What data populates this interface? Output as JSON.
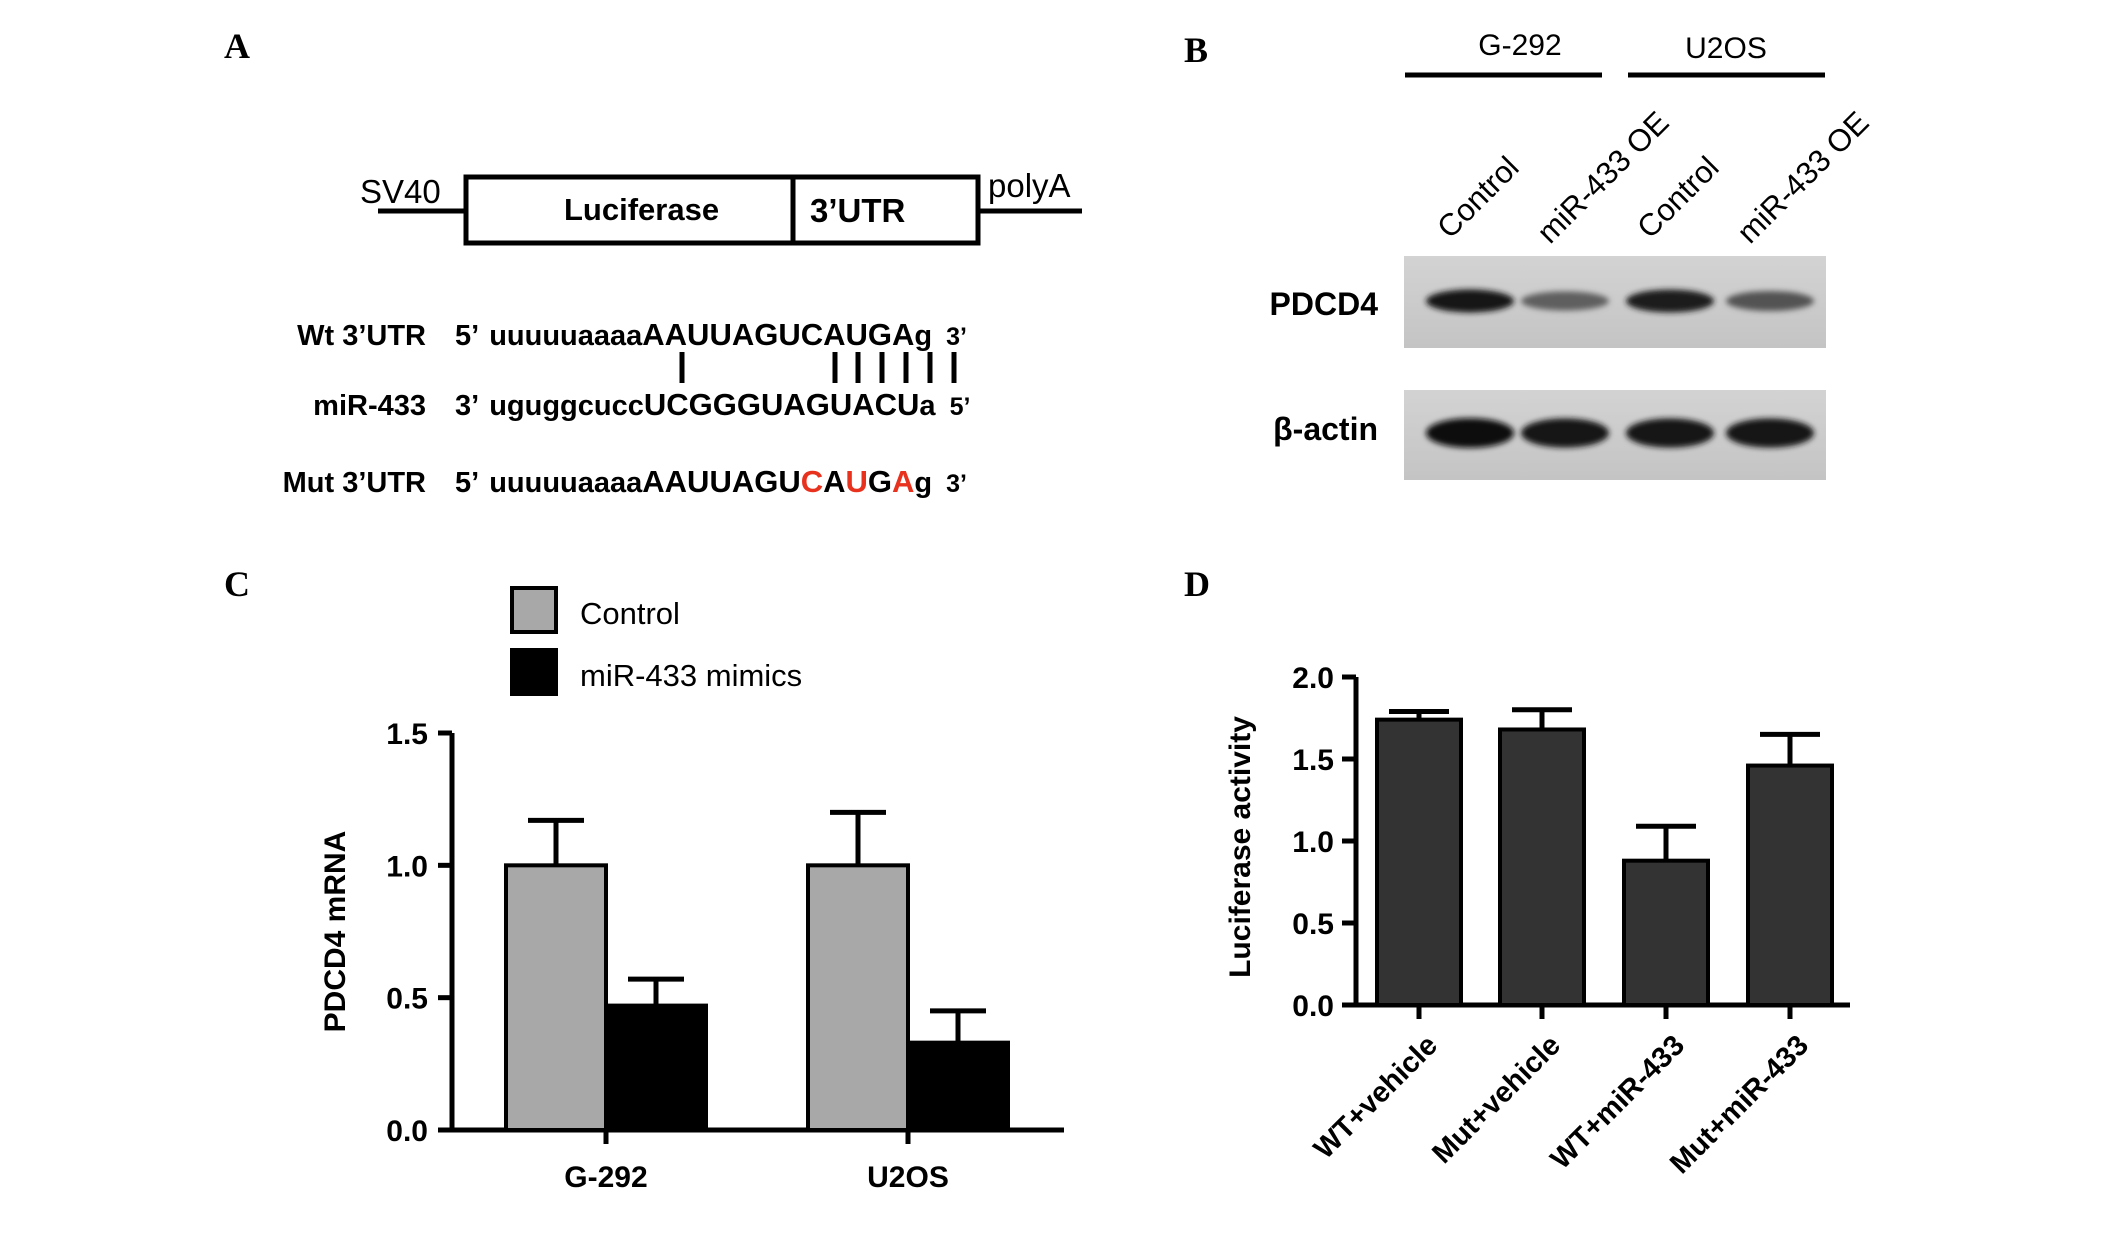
{
  "panels": {
    "A": {
      "letter": "A",
      "construct": {
        "left": "SV40",
        "luc": "Luciferase",
        "utr": "3’UTR",
        "right": "polyA"
      },
      "wt": {
        "label": "Wt 3’UTR",
        "p5": "5’",
        "lower": "uuuuuaaaa",
        "upper": "AAUUAGUCAUGA",
        "end": "g",
        "p3": "3’"
      },
      "mir": {
        "label": "miR-433",
        "p3": "3’",
        "lower": "uguggcucc",
        "upper": "UCGGGUAGUACU",
        "end": "a",
        "p5": "5’"
      },
      "mut": {
        "label": "Mut 3’UTR",
        "p5": "5’",
        "lower": "uuuuuaaaa",
        "upper": "AAUUAGU",
        "m1": "C",
        "n1": "A",
        "m2": "U",
        "n2": "G",
        "m3": "A",
        "end": "g",
        "p3": "3’"
      },
      "mutation_color": "#e8321e"
    },
    "B": {
      "letter": "B",
      "groups": [
        "G-292",
        "U2OS"
      ],
      "lanes": [
        "Control",
        "miR-433 OE",
        "Control",
        "miR-433 OE"
      ],
      "blots": [
        "PDCD4",
        "β-actin"
      ],
      "pdcd4_band_strength": [
        0.92,
        0.55,
        0.9,
        0.62
      ],
      "actin_band_strength": [
        0.98,
        0.95,
        0.95,
        0.95
      ]
    },
    "C": {
      "letter": "C"
    },
    "D": {
      "letter": "D"
    }
  },
  "chart_data": [
    {
      "panel": "C",
      "type": "bar",
      "categories": [
        "G-292",
        "U2OS"
      ],
      "series": [
        {
          "name": "Control",
          "values": [
            1.0,
            1.0
          ],
          "errors": [
            0.17,
            0.2
          ],
          "color": "#a8a8a8"
        },
        {
          "name": "miR-433 mimics",
          "values": [
            0.47,
            0.33
          ],
          "errors": [
            0.1,
            0.12
          ],
          "color": "#000000"
        }
      ],
      "xlabel": "",
      "ylabel": "PDCD4 mRNA",
      "ylim": [
        0,
        1.5
      ],
      "yticks": [
        "0.0",
        "0.5",
        "1.0",
        "1.5"
      ],
      "grid": false,
      "legend": "top-left"
    },
    {
      "panel": "D",
      "type": "bar",
      "categories": [
        "WT+vehicle",
        "Mut+vehicle",
        "WT+miR-433",
        "Mut+miR-433"
      ],
      "values": [
        1.74,
        1.68,
        0.88,
        1.46
      ],
      "errors": [
        0.05,
        0.12,
        0.21,
        0.19
      ],
      "color": "#333333",
      "xlabel": "",
      "ylabel": "Luciferase activity",
      "ylim": [
        0,
        2.0
      ],
      "yticks": [
        "0.0",
        "0.5",
        "1.0",
        "1.5",
        "2.0"
      ],
      "grid": false
    }
  ]
}
